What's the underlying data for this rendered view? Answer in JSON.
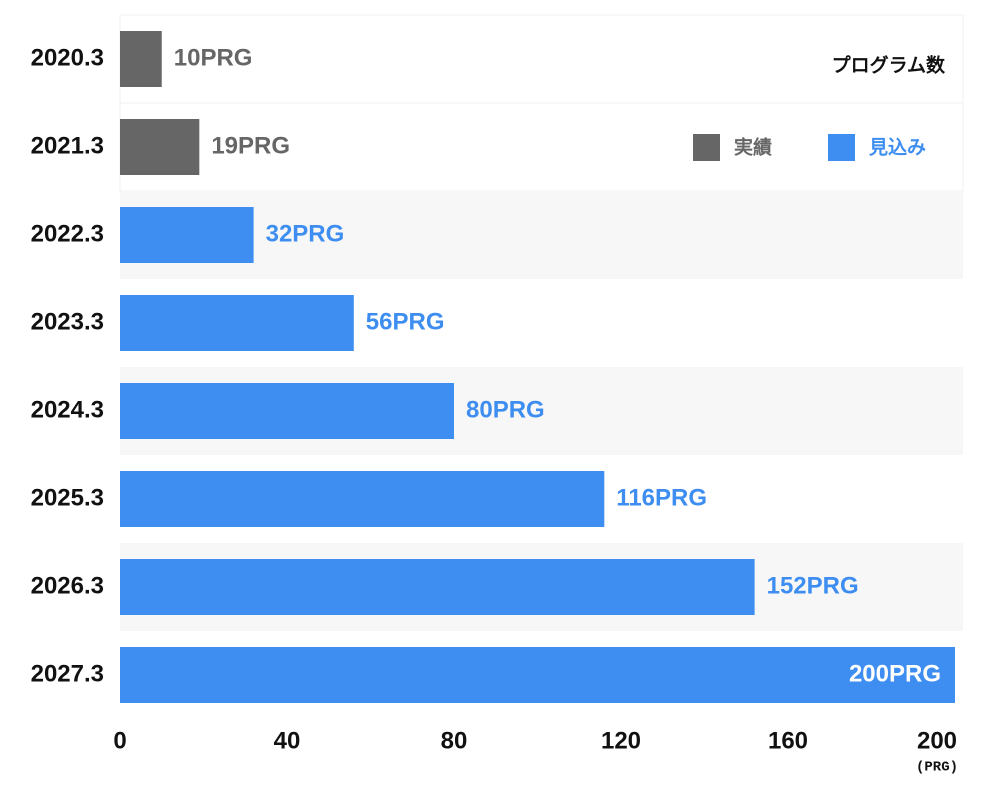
{
  "chart_data": {
    "type": "hbar",
    "title": "プログラム数",
    "x_label": "(PRG)",
    "categories": [
      "2020.3",
      "2021.3",
      "2022.3",
      "2023.3",
      "2024.3",
      "2025.3",
      "2026.3",
      "2027.3"
    ],
    "series": [
      {
        "name": "実績",
        "color": "#666666",
        "values": [
          10,
          19,
          null,
          null,
          null,
          null,
          null,
          null
        ],
        "value_labels": [
          "10PRG",
          "19PRG",
          null,
          null,
          null,
          null,
          null,
          null
        ]
      },
      {
        "name": "見込み",
        "color": "#3d8ef0",
        "values": [
          null,
          null,
          32,
          56,
          80,
          116,
          152,
          200
        ],
        "value_labels": [
          null,
          null,
          "32PRG",
          "56PRG",
          "80PRG",
          "116PRG",
          "152PRG",
          "200PRG"
        ]
      }
    ],
    "xlim": [
      0,
      200
    ],
    "xticks": [
      0,
      40,
      80,
      120,
      160,
      200
    ],
    "legend": "top-right"
  }
}
